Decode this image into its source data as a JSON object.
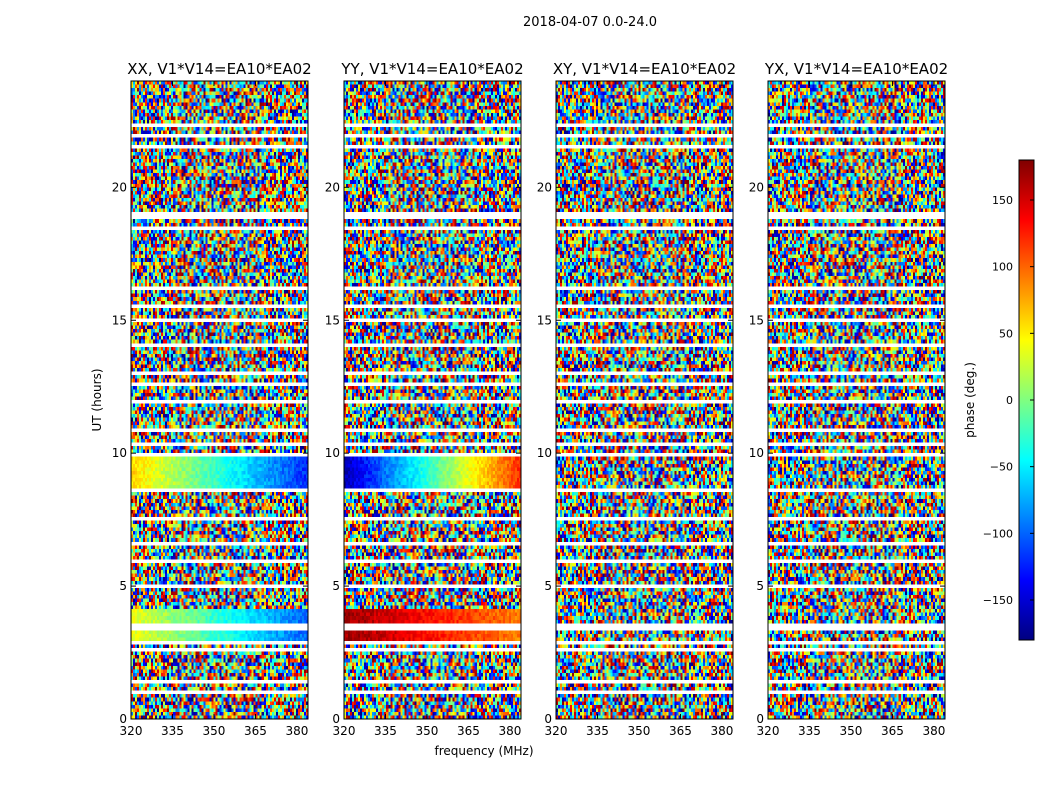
{
  "figure_title": "2018-04-07 0.0-24.0",
  "chart_data": [
    {
      "type": "heatmap",
      "title": "XX, V1*V14=EA10*EA02",
      "xlabel": "",
      "ylabel": "UT (hours)",
      "x_range_mhz": [
        320,
        384
      ],
      "y_range_hours": [
        0,
        24
      ],
      "x_ticks": [
        320,
        335,
        350,
        365,
        380
      ],
      "y_ticks": [
        0,
        5,
        10,
        15,
        20
      ],
      "coherent_bands": [
        {
          "ut_start": 8.7,
          "ut_end": 9.9,
          "phase_low_freq_deg": 60,
          "phase_high_freq_deg": -120
        },
        {
          "ut_start": 3.0,
          "ut_end": 4.1,
          "phase_low_freq_deg": 40,
          "phase_high_freq_deg": -100
        }
      ]
    },
    {
      "type": "heatmap",
      "title": "YY, V1*V14=EA10*EA02",
      "xlabel": "frequency (MHz)",
      "ylabel": "",
      "x_range_mhz": [
        320,
        384
      ],
      "y_range_hours": [
        0,
        24
      ],
      "x_ticks": [
        320,
        335,
        350,
        365,
        380
      ],
      "y_ticks": [
        0,
        5,
        10,
        15,
        20
      ],
      "coherent_bands": [
        {
          "ut_start": 8.7,
          "ut_end": 9.9,
          "phase_low_freq_deg": -160,
          "phase_high_freq_deg": 120
        },
        {
          "ut_start": 3.0,
          "ut_end": 4.1,
          "phase_low_freq_deg": 170,
          "phase_high_freq_deg": 90
        }
      ]
    },
    {
      "type": "heatmap",
      "title": "XY, V1*V14=EA10*EA02",
      "xlabel": "",
      "ylabel": "",
      "x_range_mhz": [
        320,
        384
      ],
      "y_range_hours": [
        0,
        24
      ],
      "x_ticks": [
        320,
        335,
        350,
        365,
        380
      ],
      "y_ticks": [
        0,
        5,
        10,
        15,
        20
      ],
      "coherent_bands": []
    },
    {
      "type": "heatmap",
      "title": "YX, V1*V14=EA10*EA02",
      "xlabel": "",
      "ylabel": "",
      "x_range_mhz": [
        320,
        384
      ],
      "y_range_hours": [
        0,
        24
      ],
      "x_ticks": [
        320,
        335,
        350,
        365,
        380
      ],
      "y_ticks": [
        0,
        5,
        10,
        15,
        20
      ],
      "coherent_bands": []
    }
  ],
  "colorbar": {
    "label": "phase (deg.)",
    "range": [
      -180,
      180
    ],
    "ticks": [
      150,
      100,
      50,
      0,
      -50,
      -100,
      -150
    ],
    "tick_labels": [
      "150",
      "100",
      "50",
      "0",
      "−50",
      "−100",
      "−150"
    ],
    "colormap": "jet"
  },
  "flagged_ut_hours": [
    0.95,
    1.45,
    2.6,
    2.85,
    3.35,
    3.55,
    5.05,
    5.95,
    6.55,
    7.55,
    8.65,
    9.95,
    10.35,
    10.85,
    11.95,
    12.6,
    12.95,
    14.05,
    14.95,
    15.55,
    16.25,
    18.5,
    18.85,
    19.0,
    21.5,
    21.9,
    22.3
  ]
}
